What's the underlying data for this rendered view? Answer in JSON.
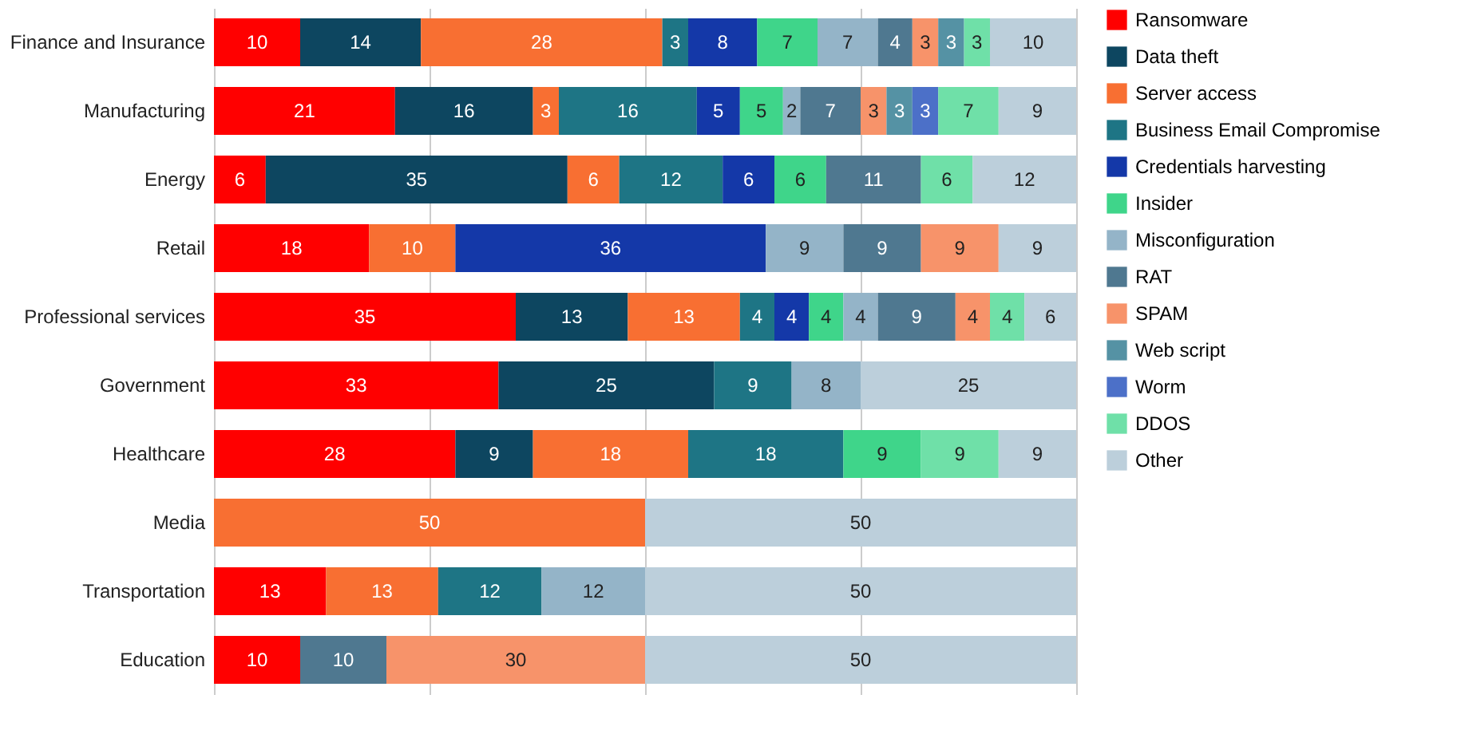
{
  "chart_data": {
    "type": "bar",
    "orientation": "horizontal",
    "stacked": true,
    "data_labels": true,
    "legend": "right",
    "grid": "x",
    "tick_labels": "y",
    "xlim": [
      0,
      100
    ],
    "xticks": [
      {
        "value": 0,
        "label": null
      },
      {
        "value": 25,
        "label": null
      },
      {
        "value": 50,
        "label": null
      },
      {
        "value": 75,
        "label": null
      },
      {
        "value": 100,
        "label": null
      }
    ],
    "categories": [
      "Finance and Insurance",
      "Manufacturing",
      "Energy",
      "Retail",
      "Professional services",
      "Government",
      "Healthcare",
      "Media",
      "Transportation",
      "Education"
    ],
    "series": [
      {
        "name": "Ransomware",
        "color": "#ff0000",
        "values": [
          10,
          21,
          6,
          18,
          35,
          33,
          28,
          null,
          13,
          10
        ]
      },
      {
        "name": "Data theft",
        "color": "#0d4660",
        "values": [
          14,
          16,
          35,
          null,
          13,
          25,
          9,
          null,
          null,
          null
        ]
      },
      {
        "name": "Server access",
        "color": "#f86f32",
        "values": [
          28,
          3,
          6,
          10,
          13,
          null,
          18,
          50,
          13,
          null
        ]
      },
      {
        "name": "Business Email Compromise",
        "color": "#1e7585",
        "values": [
          3,
          16,
          12,
          null,
          4,
          9,
          18,
          null,
          12,
          null
        ]
      },
      {
        "name": "Credentials harvesting",
        "color": "#1438a8",
        "values": [
          8,
          5,
          6,
          36,
          4,
          null,
          null,
          null,
          null,
          null
        ]
      },
      {
        "name": "Insider",
        "color": "#3fd58a",
        "values": [
          7,
          5,
          6,
          null,
          4,
          null,
          9,
          null,
          null,
          null
        ]
      },
      {
        "name": "Misconfiguration",
        "color": "#94b4c8",
        "values": [
          7,
          2,
          null,
          9,
          4,
          8,
          null,
          null,
          12,
          null
        ]
      },
      {
        "name": "RAT",
        "color": "#4f7890",
        "values": [
          4,
          7,
          11,
          9,
          9,
          null,
          null,
          null,
          null,
          10
        ]
      },
      {
        "name": "SPAM",
        "color": "#f7936a",
        "values": [
          3,
          3,
          null,
          9,
          4,
          null,
          null,
          null,
          null,
          30
        ]
      },
      {
        "name": "Web script",
        "color": "#5592a4",
        "values": [
          3,
          3,
          null,
          null,
          null,
          null,
          null,
          null,
          null,
          null
        ]
      },
      {
        "name": "Worm",
        "color": "#4c70c8",
        "values": [
          null,
          3,
          null,
          null,
          null,
          null,
          null,
          null,
          null,
          null
        ]
      },
      {
        "name": "DDOS",
        "color": "#6fe0a8",
        "values": [
          3,
          7,
          6,
          null,
          4,
          null,
          9,
          null,
          null,
          null
        ]
      },
      {
        "name": "Other",
        "color": "#bccfdb",
        "values": [
          10,
          9,
          12,
          9,
          6,
          25,
          9,
          50,
          50,
          50
        ]
      }
    ]
  }
}
